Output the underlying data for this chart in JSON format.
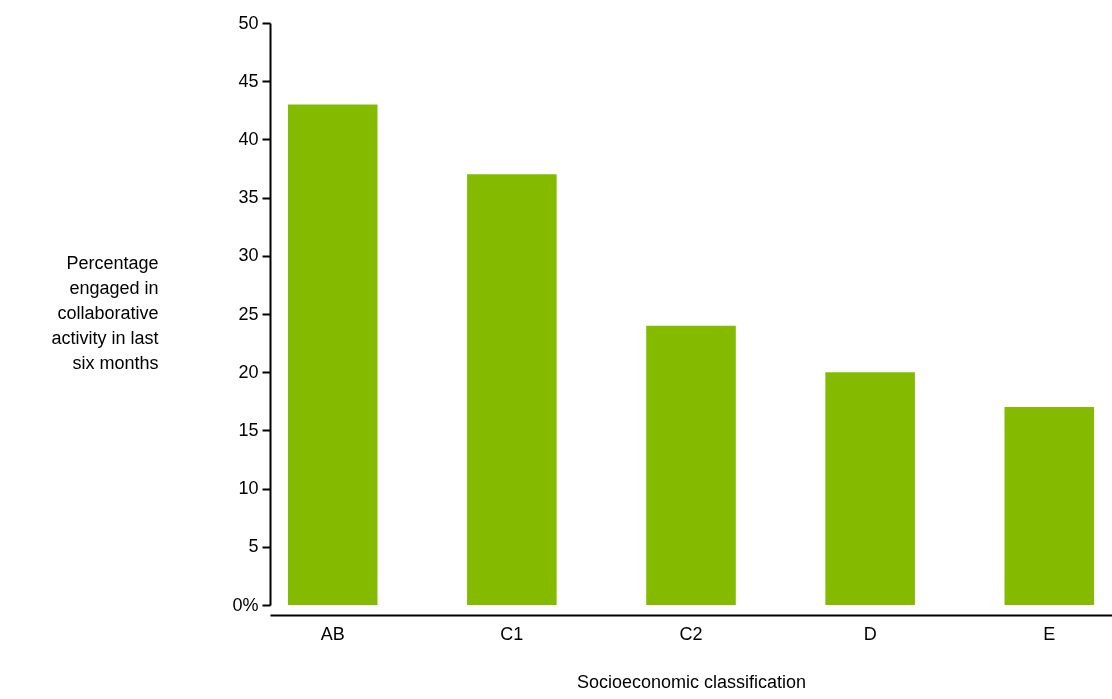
{
  "chart_data": {
    "type": "bar",
    "xlabel": "Socioeconomic classification",
    "ylabel": "Percentage engaged in collaborative activity in last six months",
    "categories": [
      "AB",
      "C1",
      "C2",
      "D",
      "E"
    ],
    "values": [
      43,
      37,
      24,
      20,
      17
    ],
    "color": "#84bb00",
    "ylim": [
      0,
      50
    ],
    "yticks": [
      {
        "value": 0,
        "label": "0%"
      },
      5,
      10,
      15,
      20,
      25,
      30,
      35,
      40,
      45,
      50
    ],
    "grid": false
  }
}
